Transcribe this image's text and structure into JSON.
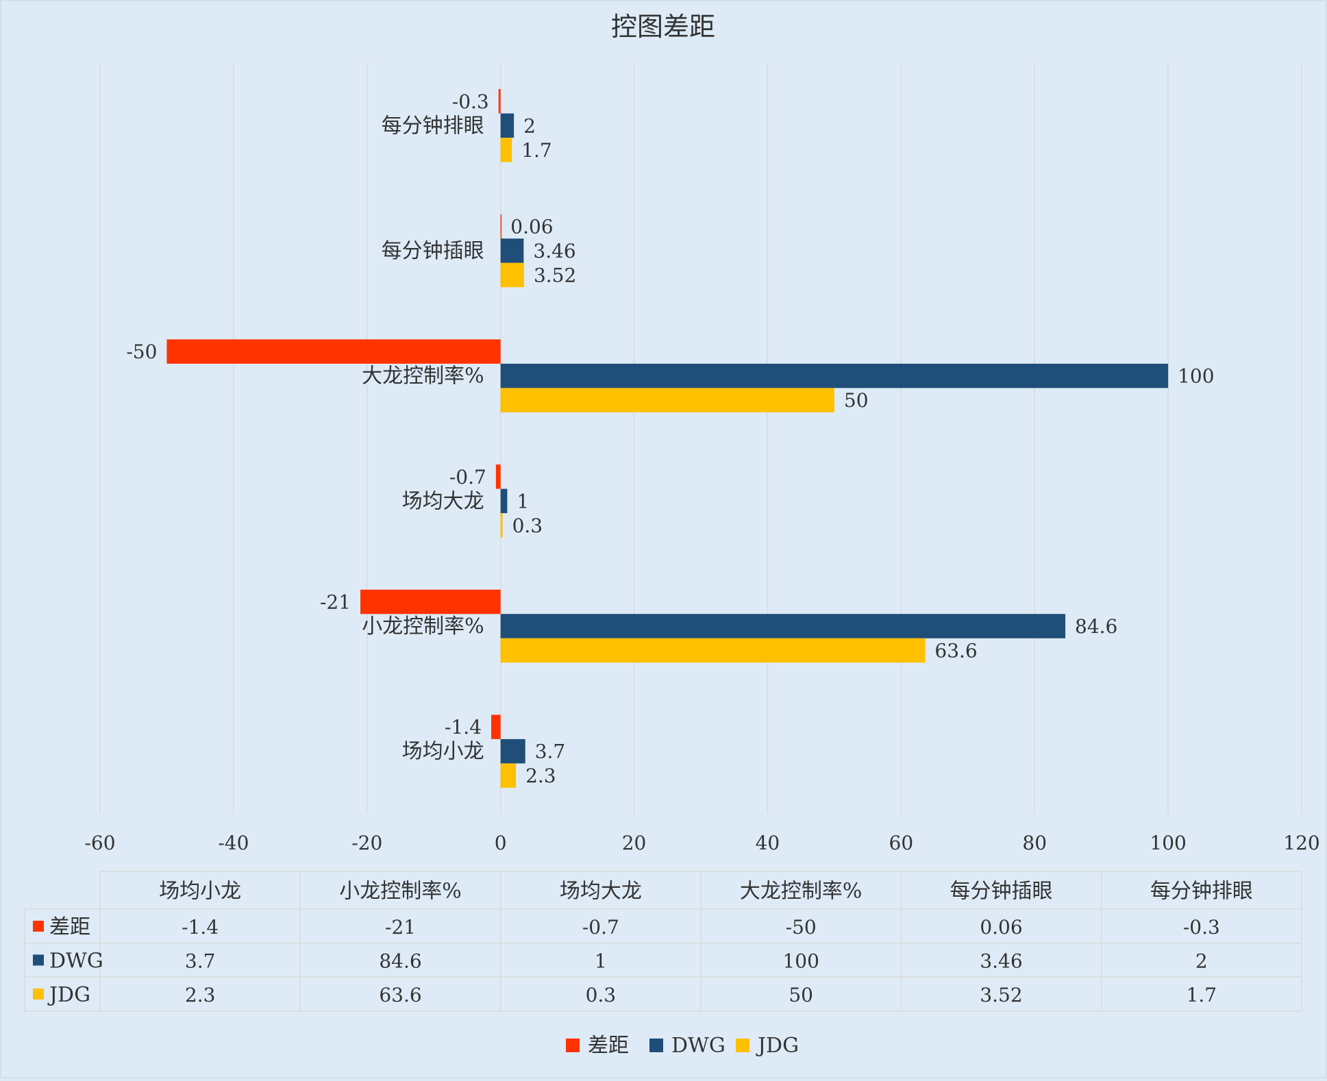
{
  "chart_data": {
    "type": "bar",
    "orientation": "horizontal",
    "title": "控图差距",
    "categories": [
      "场均小龙",
      "小龙控制率%",
      "场均大龙",
      "大龙控制率%",
      "每分钟插眼",
      "每分钟排眼"
    ],
    "series": [
      {
        "name": "差距",
        "values": [
          -1.4,
          -21,
          -0.7,
          -50,
          0.06,
          -0.3
        ]
      },
      {
        "name": "DWG",
        "values": [
          3.7,
          84.6,
          1,
          100,
          3.46,
          2
        ]
      },
      {
        "name": "JDG",
        "values": [
          2.3,
          63.6,
          0.3,
          50,
          3.52,
          1.7
        ]
      }
    ],
    "data_labels": [
      [
        "-1.4",
        "-21",
        "-0.7",
        "-50",
        "0.06",
        "-0.3"
      ],
      [
        "3.7",
        "84.6",
        "1",
        "100",
        "3.46",
        "2"
      ],
      [
        "2.3",
        "63.6",
        "0.3",
        "50",
        "3.52",
        "1.7"
      ]
    ],
    "xlim": [
      -60,
      120
    ],
    "xticks": [
      -60,
      -40,
      -20,
      0,
      20,
      40,
      60,
      80,
      100,
      120
    ],
    "grid": true,
    "legend": "bottom",
    "data_table": true,
    "colors": {
      "差距": "#ff3300",
      "DWG": "#1f4e79",
      "JDG": "#ffc000"
    },
    "background": "#deebf7",
    "gridline_color": "#d9d9d9"
  }
}
